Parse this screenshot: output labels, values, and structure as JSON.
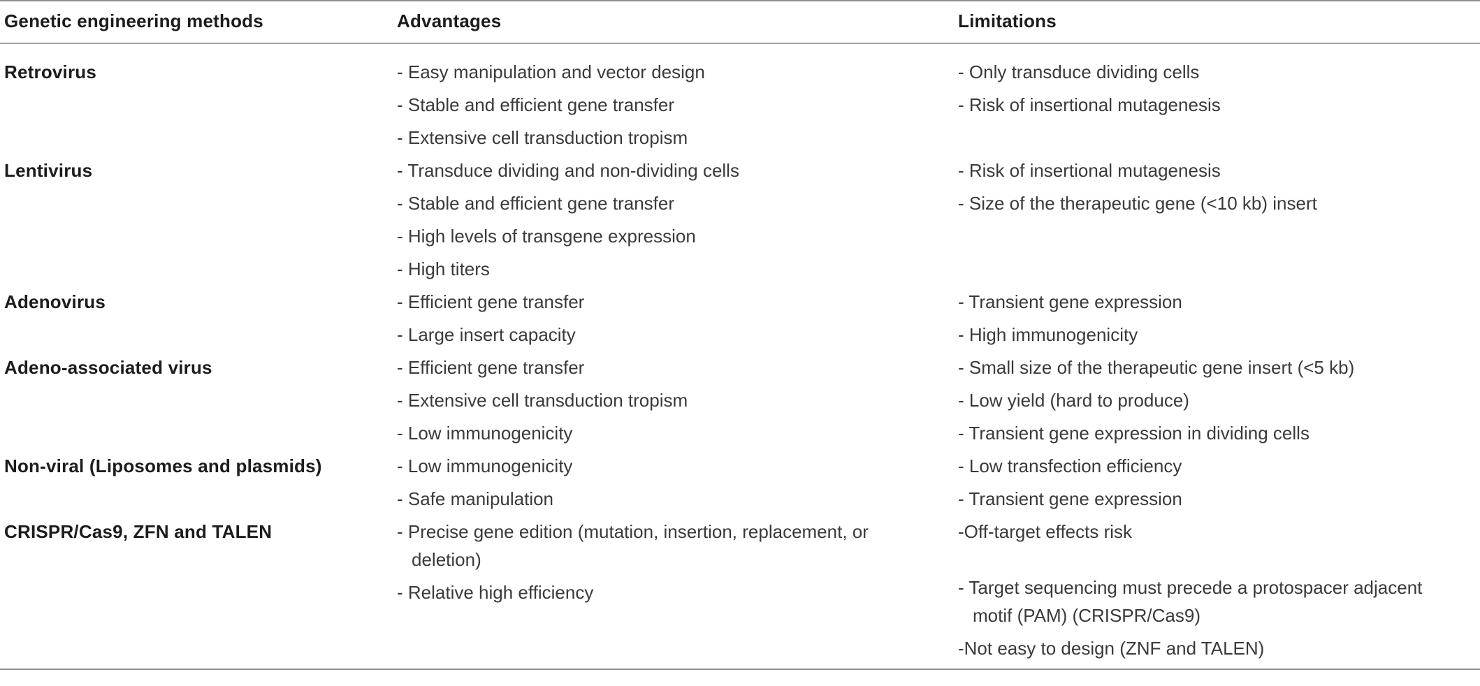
{
  "colors": {
    "background": "#ffffff",
    "rule": "#8f8f8f",
    "heading_text": "#1c1c1c",
    "body_text": "#3a3a3a"
  },
  "table": {
    "columns": [
      {
        "label": "Genetic engineering methods"
      },
      {
        "label": "Advantages"
      },
      {
        "label": "Limitations"
      }
    ],
    "rows": [
      {
        "method": "Retrovirus",
        "advantages": [
          "- Easy manipulation and vector design",
          "- Stable and efficient gene transfer",
          "- Extensive cell transduction tropism"
        ],
        "limitations": [
          "- Only transduce dividing cells",
          "- Risk of insertional mutagenesis"
        ]
      },
      {
        "method": "Lentivirus",
        "advantages": [
          "- Transduce dividing and non-dividing cells",
          "- Stable and efficient gene transfer",
          "- High levels of transgene expression",
          "- High titers"
        ],
        "limitations": [
          "- Risk of insertional mutagenesis",
          "- Size of the therapeutic gene (<10 kb) insert"
        ]
      },
      {
        "method": "Adenovirus",
        "advantages": [
          "- Efficient gene transfer",
          "- Large insert capacity"
        ],
        "limitations": [
          "- Transient gene expression",
          "- High immunogenicity"
        ]
      },
      {
        "method": "Adeno-associated virus",
        "advantages": [
          "- Efficient gene transfer",
          "- Extensive cell transduction tropism",
          "- Low immunogenicity"
        ],
        "limitations": [
          "- Small size of the therapeutic gene insert (<5 kb)",
          "- Low yield (hard to produce)",
          "- Transient gene expression in dividing cells"
        ]
      },
      {
        "method": "Non-viral (Liposomes and plasmids)",
        "advantages": [
          "- Low immunogenicity",
          "- Safe manipulation"
        ],
        "limitations": [
          "- Low transfection efficiency",
          "- Transient gene expression"
        ]
      },
      {
        "method": "CRISPR/Cas9, ZFN and TALEN",
        "advantages": [
          "- Precise gene edition (mutation, insertion, replacement, or deletion)",
          "- Relative high efficiency"
        ],
        "limitations": [
          "-Off-target effects risk",
          "- Target sequencing must precede a protospacer adjacent motif (PAM) (CRISPR/Cas9)",
          "-Not easy to design (ZNF and TALEN)"
        ]
      }
    ]
  }
}
